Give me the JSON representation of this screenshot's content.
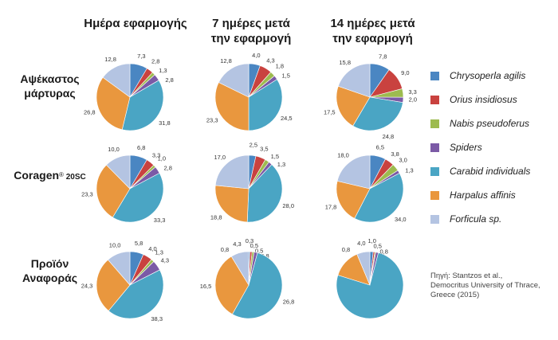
{
  "columns": [
    {
      "line1": "Ημέρα εφαρμογής",
      "line2": ""
    },
    {
      "line1": "7 ημέρες μετά",
      "line2": "την εφαρμογή"
    },
    {
      "line1": "14 ημέρες μετά",
      "line2": "την εφαρμογή"
    }
  ],
  "rows": [
    {
      "line1": "Αψέκαστος",
      "line2": "μάρτυρας"
    },
    {
      "line1": "Coragen",
      "sup": "®",
      "small": " 20SC"
    },
    {
      "line1": "Προϊόν",
      "line2": "Αναφοράς"
    }
  ],
  "legend": [
    {
      "label": "Chrysoperla agilis",
      "color": "#4a86c2"
    },
    {
      "label": "Orius insidiosus",
      "color": "#c9423f"
    },
    {
      "label": "Nabis pseudoferus",
      "color": "#9dbb4f"
    },
    {
      "label": "Spiders",
      "color": "#7b5aa6"
    },
    {
      "label": "Carabid individuals",
      "color": "#4aa5c4"
    },
    {
      "label": "Harpalus affinis",
      "color": "#e9973e"
    },
    {
      "label": "Forficula sp.",
      "color": "#b4c4e2"
    }
  ],
  "source": {
    "line1": "Πηγή: Stantzos et al.,",
    "line2": "Democritus University of Thrace,",
    "line3": "Greece (2015)"
  },
  "chart_data": {
    "type": "pie",
    "series_names": [
      "Chrysoperla agilis",
      "Orius insidiosus",
      "Nabis pseudoferus",
      "Spiders",
      "Carabid individuals",
      "Harpalus affinis",
      "Forficula sp."
    ],
    "pies": [
      {
        "row": "Αψέκαστος μάρτυρας",
        "column": "Ημέρα εφαρμογής",
        "values": [
          7.3,
          2.8,
          1.3,
          2.8,
          31.8,
          26.8,
          12.8
        ],
        "labels": [
          "7,3",
          "2,8",
          "1,3",
          "2,8",
          "31,8",
          "26,8",
          "12,8"
        ]
      },
      {
        "row": "Αψέκαστος μάρτυρας",
        "column": "7 ημέρες μετά την εφαρμογή",
        "values": [
          4.0,
          4.3,
          1.8,
          1.5,
          24.5,
          23.3,
          12.8
        ],
        "labels": [
          "4,0",
          "4,3",
          "1,8",
          "1,5",
          "24,5",
          "23,3",
          "12,8"
        ]
      },
      {
        "row": "Αψέκαστος μάρτυρας",
        "column": "14 ημέρες μετά την εφαρμογή",
        "values": [
          7.8,
          9.0,
          3.3,
          2.0,
          24.8,
          17.5,
          15.8
        ],
        "labels": [
          "7,8",
          "9,0",
          "3,3",
          "2,0",
          "24,8",
          "17,5",
          "15,8"
        ]
      },
      {
        "row": "Coragen® 20SC",
        "column": "Ημέρα εφαρμογής",
        "values": [
          6.8,
          3.3,
          1.0,
          2.8,
          33.3,
          23.3,
          10.0
        ],
        "labels": [
          "6,8",
          "3,3",
          "1,0",
          "2,8",
          "33,3",
          "23,3",
          "10,0"
        ]
      },
      {
        "row": "Coragen® 20SC",
        "column": "7 ημέρες μετά την εφαρμογή",
        "values": [
          2.5,
          3.5,
          1.5,
          1.3,
          28.0,
          18.8,
          17.0
        ],
        "labels": [
          "2,5",
          "3,5",
          "1,5",
          "1,3",
          "28,0",
          "18,8",
          "17,0"
        ]
      },
      {
        "row": "Coragen® 20SC",
        "column": "14 ημέρες μετά την εφαρμογή",
        "values": [
          6.5,
          3.8,
          3.0,
          1.3,
          34.0,
          17.8,
          18.0
        ],
        "labels": [
          "6,5",
          "3,8",
          "3,0",
          "1,3",
          "34,0",
          "17,8",
          "18,0"
        ]
      },
      {
        "row": "Προϊόν Αναφοράς",
        "column": "Ημέρα εφαρμογής",
        "values": [
          5.8,
          4.0,
          1.3,
          4.3,
          38.3,
          24.3,
          10.0
        ],
        "labels": [
          "5,8",
          "4,0",
          "1,3",
          "4,3",
          "38,3",
          "24,3",
          "10,0"
        ]
      },
      {
        "row": "Προϊόν Αναφοράς",
        "column": "7 ημέρες μετά την εφαρμογή",
        "values": [
          0.3,
          0.5,
          0.5,
          0.8,
          26.8,
          16.5,
          4.3
        ],
        "labels": [
          "0,3",
          "0,5",
          "0,5",
          "0,8",
          "26,8",
          "16,5",
          "4,3"
        ]
      },
      {
        "row": "Προϊόν Αναφοράς",
        "column": "14 ημέρες μετά την εφαρμογή",
        "values": [
          1.0,
          0.5,
          0.3,
          0.8,
          48.0,
          8.8,
          4.0
        ],
        "labels": [
          "1,0",
          "0,5",
          "",
          "0,8",
          "",
          "",
          "4,0"
        ]
      }
    ],
    "extra_labels": [
      {
        "pie": 7,
        "text": "0,8"
      },
      {
        "pie": 8,
        "text": "0,8"
      }
    ]
  }
}
